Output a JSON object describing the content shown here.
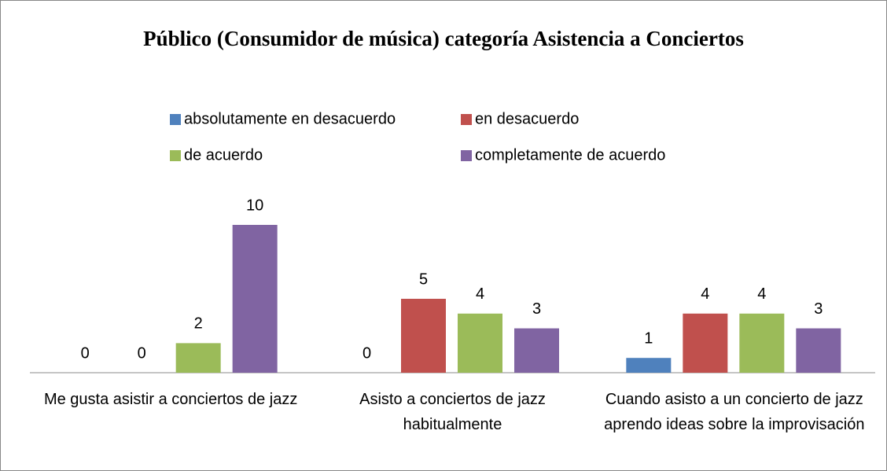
{
  "chart_data": {
    "type": "bar",
    "title": "Público (Consumidor de música) categoría Asistencia a Conciertos",
    "categories": [
      "Me gusta asistir a conciertos de jazz",
      "Asisto a conciertos de jazz habitualmente",
      "Cuando asisto a un concierto de jazz aprendo ideas sobre la improvisación"
    ],
    "series": [
      {
        "name": "absolutamente en desacuerdo",
        "color": "#4f81bd",
        "values": [
          0,
          0,
          1
        ]
      },
      {
        "name": "en desacuerdo",
        "color": "#c0504d",
        "values": [
          0,
          5,
          4
        ]
      },
      {
        "name": "de acuerdo",
        "color": "#9bbb59",
        "values": [
          2,
          4,
          4
        ]
      },
      {
        "name": "completamente de acuerdo",
        "color": "#8064a2",
        "values": [
          10,
          3,
          3
        ]
      }
    ],
    "ylim": [
      0,
      10
    ]
  }
}
